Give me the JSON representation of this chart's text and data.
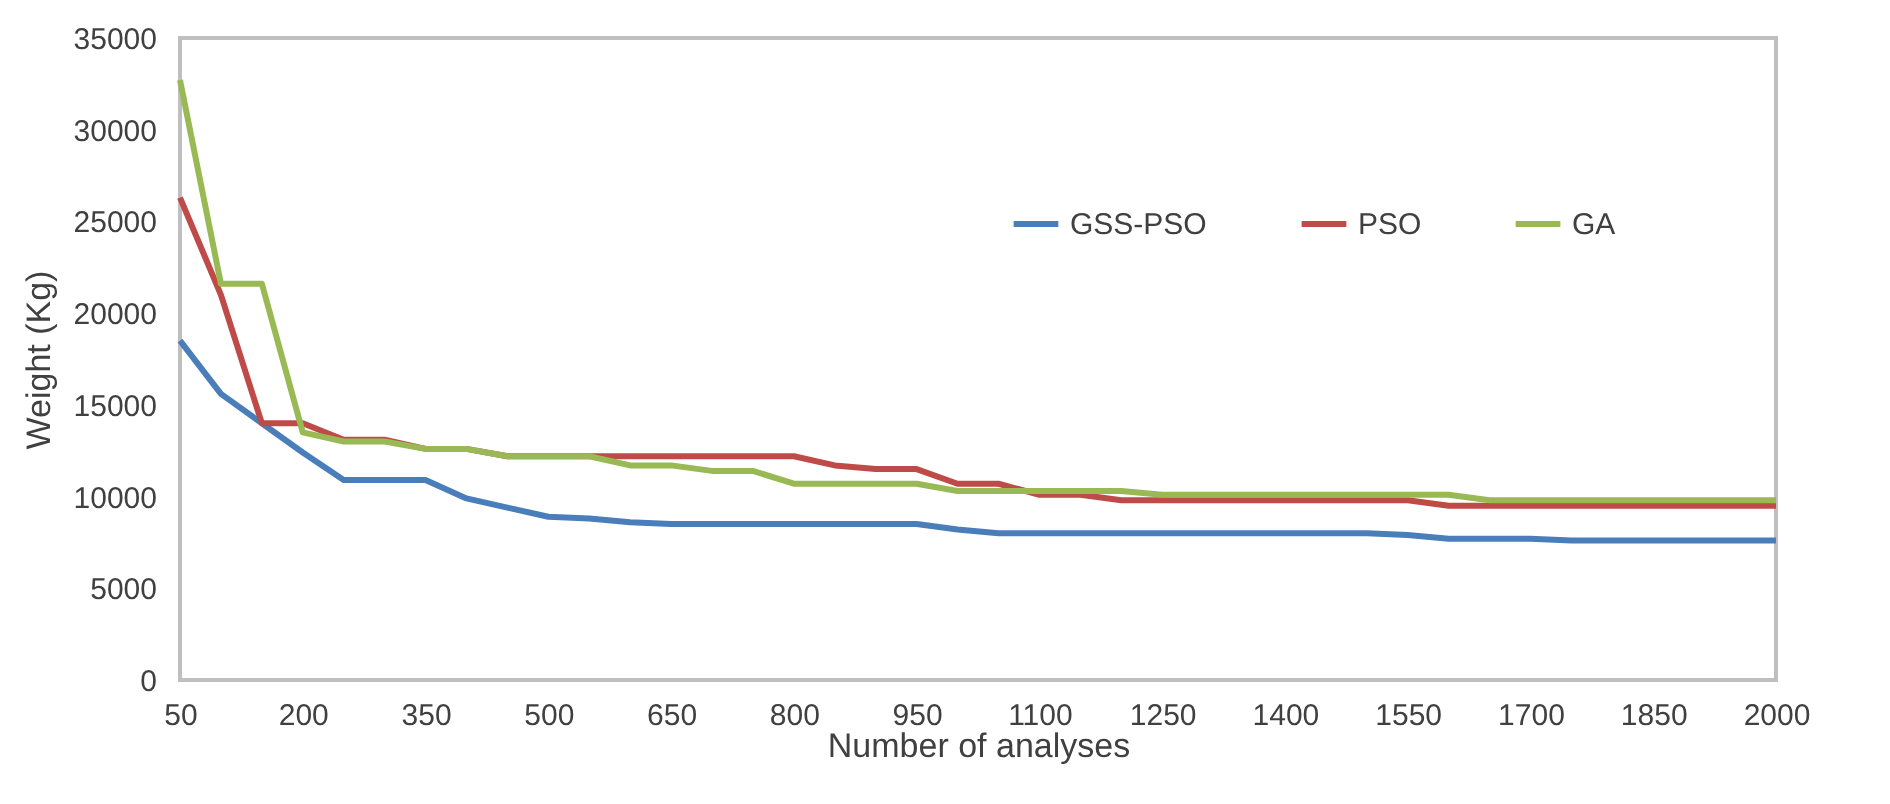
{
  "chart_data": {
    "type": "line",
    "xlabel": "Number of analyses",
    "ylabel": "Weight (Kg)",
    "x": [
      50,
      100,
      150,
      200,
      250,
      300,
      350,
      400,
      450,
      500,
      550,
      600,
      650,
      700,
      750,
      800,
      850,
      900,
      950,
      1000,
      1050,
      1100,
      1150,
      1200,
      1250,
      1300,
      1350,
      1400,
      1450,
      1500,
      1550,
      1600,
      1650,
      1700,
      1750,
      1800,
      1850,
      1900,
      1950,
      2000
    ],
    "xlim": [
      50,
      2000
    ],
    "xticks": [
      50,
      200,
      350,
      500,
      650,
      800,
      950,
      1100,
      1250,
      1400,
      1550,
      1700,
      1850,
      2000
    ],
    "ylim": [
      0,
      35000
    ],
    "yticks": [
      0,
      5000,
      10000,
      15000,
      20000,
      25000,
      30000,
      35000
    ],
    "grid": false,
    "legend": "top right",
    "line_style": "solid",
    "marker": "none",
    "series": [
      {
        "name": "GSS-PSO",
        "color": "#4a7ebb",
        "values": [
          18500,
          15600,
          14000,
          12400,
          10900,
          10900,
          10900,
          9900,
          9400,
          8900,
          8800,
          8600,
          8500,
          8500,
          8500,
          8500,
          8500,
          8500,
          8500,
          8200,
          8000,
          8000,
          8000,
          8000,
          8000,
          8000,
          8000,
          8000,
          8000,
          8000,
          7900,
          7700,
          7700,
          7700,
          7600,
          7600,
          7600,
          7600,
          7600,
          7600
        ]
      },
      {
        "name": "PSO",
        "color": "#be4b48",
        "values": [
          26300,
          21000,
          14000,
          14000,
          13100,
          13100,
          12600,
          12600,
          12200,
          12200,
          12200,
          12200,
          12200,
          12200,
          12200,
          12200,
          11700,
          11500,
          11500,
          10700,
          10700,
          10100,
          10100,
          9800,
          9800,
          9800,
          9800,
          9800,
          9800,
          9800,
          9800,
          9500,
          9500,
          9500,
          9500,
          9500,
          9500,
          9500,
          9500,
          9500
        ]
      },
      {
        "name": "GA",
        "color": "#98b954",
        "values": [
          32700,
          21600,
          21600,
          13500,
          13000,
          13000,
          12600,
          12600,
          12200,
          12200,
          12200,
          11700,
          11700,
          11400,
          11400,
          10700,
          10700,
          10700,
          10700,
          10300,
          10300,
          10300,
          10300,
          10300,
          10100,
          10100,
          10100,
          10100,
          10100,
          10100,
          10100,
          10100,
          9800,
          9800,
          9800,
          9800,
          9800,
          9800,
          9800,
          9800
        ]
      }
    ]
  }
}
